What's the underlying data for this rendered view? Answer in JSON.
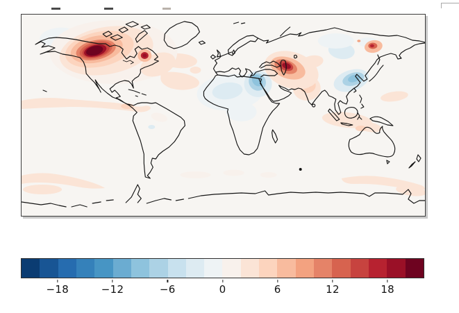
{
  "figure": {
    "description": "Filled-contour world map (equirectangular, lon -180..180, lat -90..90) of an anomaly field with a discrete diverging blue-white-red colorbar below"
  },
  "colorbar": {
    "min": -22,
    "max": 22,
    "step": 2,
    "tick_values": [
      -18,
      -12,
      -6,
      0,
      6,
      12,
      18
    ],
    "tick_labels": [
      "−18",
      "−12",
      "−6",
      "0",
      "6",
      "12",
      "18"
    ],
    "colormap": "RdBu_r diverging, 22 discrete bins",
    "segments": [
      "#0b3c72",
      "#185594",
      "#266caf",
      "#3581ba",
      "#4795c4",
      "#6bacd1",
      "#8ec3dd",
      "#acd2e5",
      "#c8e1ee",
      "#ddebf2",
      "#eef3f5",
      "#f8f1ec",
      "#fbe4d6",
      "#fcd4be",
      "#f8bb9e",
      "#f3a280",
      "#e58368",
      "#d7634f",
      "#c7433f",
      "#b72230",
      "#9a1027",
      "#6e0320"
    ],
    "border_color": "#2e2e2e",
    "tick_color": "#222222",
    "label_color": "#111111"
  },
  "map": {
    "ocean_color": "#f7f5f2",
    "coastline_color": "#141414",
    "frame_color": "#3c3c3c",
    "shadow_color": "#c9c9c9"
  },
  "chart_data": {
    "type": "heatmap",
    "projection": "equirectangular world map, lon -180..180, lat -90..90",
    "colorbar": {
      "min": -22,
      "max": 22,
      "step": 2,
      "ticks": [
        -18,
        -12,
        -6,
        0,
        6,
        12,
        18
      ],
      "colormap": "RdBu_r (blue = negative, white = zero, red = positive), discrete 2-unit bins"
    },
    "anomalies": [
      {
        "region": "Western/Central Canada",
        "sign": "positive",
        "approx_peak": 20,
        "extent": "dark maroon core over Prairies/NWT with broad pale-orange halo over most of Canada"
      },
      {
        "region": "Quebec / Labrador",
        "sign": "positive",
        "approx_peak": 16
      },
      {
        "region": "Caspian / Iran / Central Asia",
        "sign": "positive",
        "approx_peak": 18
      },
      {
        "region": "Northeast Siberia",
        "sign": "positive",
        "approx_peak": 14
      },
      {
        "region": "India",
        "sign": "positive",
        "approx_peak": 6
      },
      {
        "region": "North Atlantic (swirl)",
        "sign": "positive",
        "approx_peak": 3
      },
      {
        "region": "Tropical East Pacific / Caribbean band",
        "sign": "positive",
        "approx_peak": 3
      },
      {
        "region": "Indonesia / North Australia seas",
        "sign": "positive",
        "approx_peak": 3
      },
      {
        "region": "Southern Ocean bands (both flanks)",
        "sign": "positive",
        "approx_peak": 3
      },
      {
        "region": "Sahara / Central Africa",
        "sign": "negative",
        "approx_peak": -3
      },
      {
        "region": "Egypt / Red Sea / Arabia",
        "sign": "negative",
        "approx_peak": -8
      },
      {
        "region": "Western China / Tibet",
        "sign": "negative",
        "approx_peak": -8
      },
      {
        "region": "Kazakhstan / Siberia patches",
        "sign": "negative",
        "approx_peak": -4
      }
    ]
  },
  "artifacts": {
    "top_text_remnant": "three faint dark dashes along the top edge (bottom of cropped-off text)",
    "top_right_corner": "light gray partial frame corner of another UI element"
  }
}
